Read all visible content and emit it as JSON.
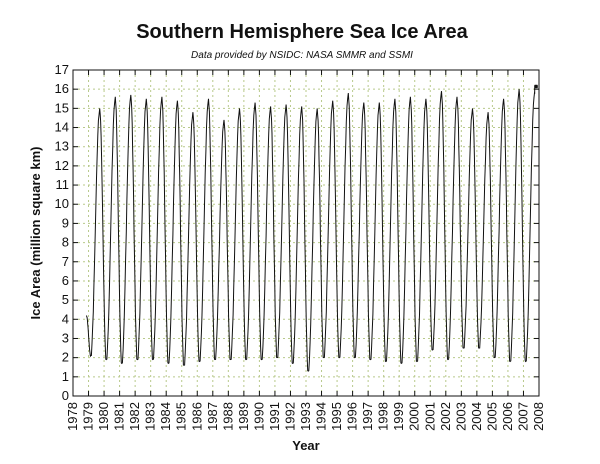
{
  "chart_data": {
    "type": "line",
    "title": "Southern Hemisphere Sea Ice Area",
    "subtitle": "Data provided by NSIDC: NASA SMMR and SSMI",
    "xlabel": "Year",
    "ylabel": "Ice Area (million square km)",
    "xlim": [
      1978,
      2008
    ],
    "ylim": [
      0,
      17
    ],
    "x_ticks": [
      1978,
      1979,
      1980,
      1981,
      1982,
      1983,
      1984,
      1985,
      1986,
      1987,
      1988,
      1989,
      1990,
      1991,
      1992,
      1993,
      1994,
      1995,
      1996,
      1997,
      1998,
      1999,
      2000,
      2001,
      2002,
      2003,
      2004,
      2005,
      2006,
      2007,
      2008
    ],
    "y_ticks": [
      0,
      1,
      2,
      3,
      4,
      5,
      6,
      7,
      8,
      9,
      10,
      11,
      12,
      13,
      14,
      15,
      16,
      17
    ],
    "grid": true,
    "legend": "none",
    "colors": {
      "line": "#111111",
      "grid": "#b8c98a"
    },
    "series": [
      {
        "yearly_min": [
          2.1,
          1.9,
          1.7,
          1.9,
          1.9,
          1.7,
          1.6,
          1.8,
          1.9,
          1.9,
          1.9,
          1.9,
          2.0,
          1.7,
          1.3,
          2.0,
          2.0,
          2.0,
          1.9,
          1.8,
          1.7,
          1.8,
          2.4,
          1.9,
          2.5,
          2.5,
          2.0,
          1.8,
          1.8
        ],
        "yearly_max": [
          15.0,
          15.6,
          15.7,
          15.5,
          15.6,
          15.4,
          14.8,
          15.5,
          14.4,
          15.0,
          15.3,
          15.1,
          15.2,
          15.1,
          15.0,
          15.4,
          15.8,
          15.3,
          15.3,
          15.5,
          15.6,
          15.5,
          15.9,
          15.6,
          15.0,
          14.8,
          15.5,
          16.0,
          15.9,
          16.2
        ],
        "start_value": 4.2,
        "end_value": 16.2
      }
    ]
  }
}
